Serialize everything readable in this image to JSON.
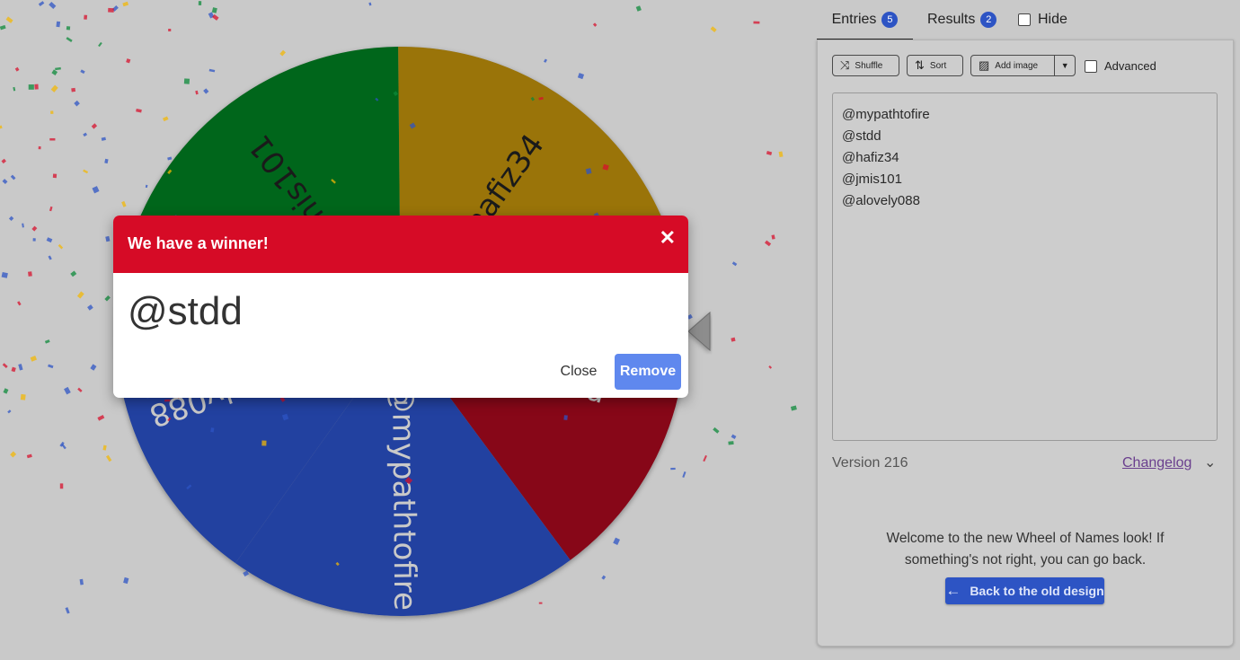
{
  "wheel": {
    "slices": [
      {
        "label": "@mypathtofire",
        "color": "#2241a0"
      },
      {
        "label": "@stdd",
        "color": "#870718"
      },
      {
        "label": "@hafiz34",
        "color": "#9a7409"
      },
      {
        "label": "@jmis101",
        "color": "#00661b"
      },
      {
        "label": "@alovely088",
        "color": "#2241a0"
      }
    ],
    "pointer_icon": "triangle-pointer-icon"
  },
  "tabs": {
    "entries_label": "Entries",
    "entries_count": "5",
    "results_label": "Results",
    "results_count": "2",
    "hide_label": "Hide"
  },
  "toolbar": {
    "shuffle_label": "Shuffle",
    "sort_label": "Sort",
    "add_image_label": "Add image",
    "advanced_label": "Advanced"
  },
  "entries": [
    "@mypathtofire",
    "@stdd",
    "@hafiz34",
    "@jmis101",
    "@alovely088"
  ],
  "footer": {
    "version": "Version 216",
    "changelog": "Changelog",
    "welcome": "Welcome to the new Wheel of Names look! If something's not right, you can go back.",
    "back_button": "Back to the old design"
  },
  "modal": {
    "title": "We have a winner!",
    "winner": "@stdd",
    "close_label": "Close",
    "remove_label": "Remove"
  },
  "colors": {
    "accent": "#2d54c4",
    "modal_header": "#d60b26",
    "remove_button": "#5f88ee"
  }
}
